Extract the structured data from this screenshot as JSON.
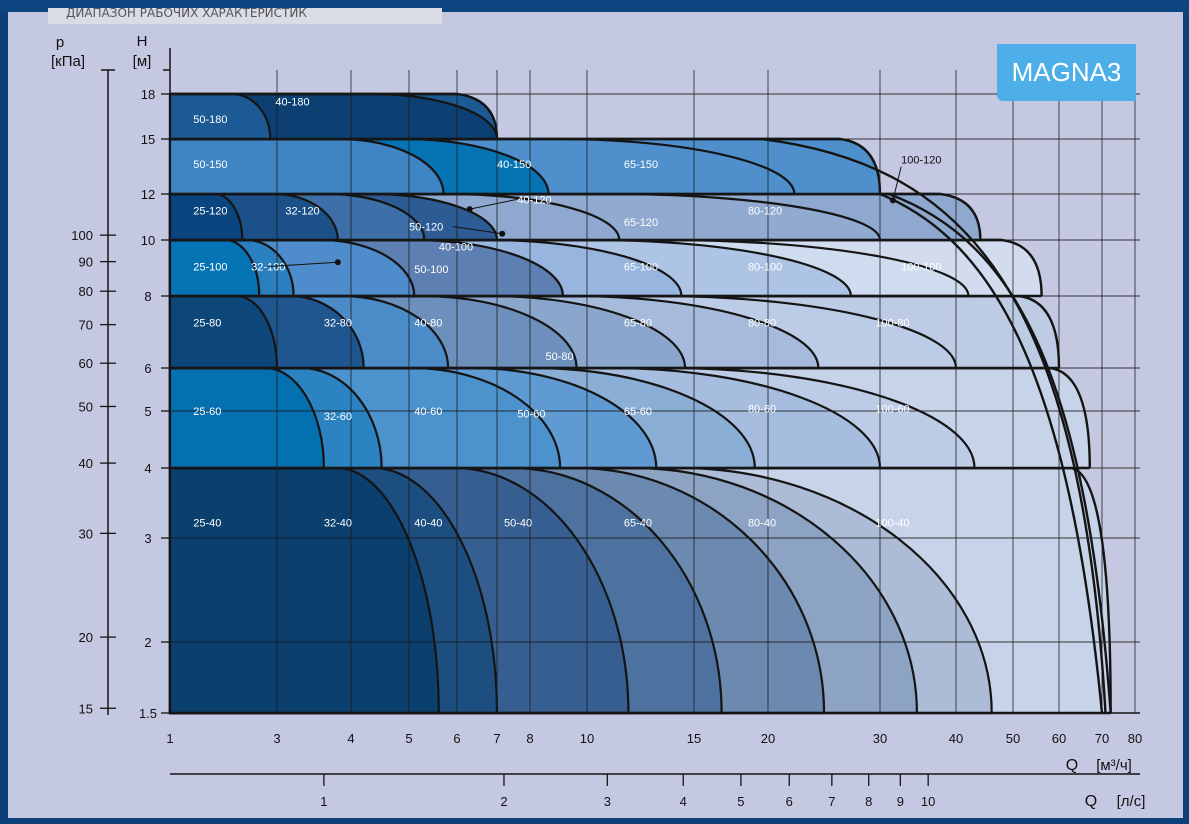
{
  "header": {
    "text": "ДИАПАЗОН РАБОЧИХ ХАРАКТЕРИСТИК"
  },
  "badge": {
    "label": "MAGNA3"
  },
  "colors": {
    "panel": "#c4c9e1",
    "band": "#0d3f78",
    "badge": "#4daee8",
    "grid": "#1a1a1a",
    "curve": "#141414"
  },
  "chart_data": {
    "type": "area",
    "title": "",
    "y_scale": "log",
    "x_scale": "log",
    "grid": true,
    "axes": {
      "H": {
        "label": "H",
        "unit": "[м]",
        "range": [
          1.5,
          20
        ],
        "ticks": [
          "1.5",
          "2",
          "3",
          "4",
          "5",
          "6",
          "8",
          "10",
          "12",
          "15",
          "18"
        ]
      },
      "p": {
        "label": "p",
        "unit": "[кПа]",
        "range": [
          15,
          200
        ],
        "ticks": [
          "15",
          "20",
          "30",
          "40",
          "50",
          "60",
          "70",
          "80",
          "90",
          "100"
        ]
      },
      "Q_m3h": {
        "label": "Q",
        "unit": "[м³/ч]",
        "range": [
          1,
          80
        ],
        "ticks": [
          "1",
          "3",
          "4",
          "5",
          "6",
          "7",
          "8",
          "10",
          "15",
          "20",
          "30",
          "40",
          "50",
          "60",
          "70",
          "80"
        ]
      },
      "Q_ls": {
        "label": "Q",
        "unit": "[л/с]",
        "ticks": [
          "1",
          "2",
          "3",
          "4",
          "5",
          "6",
          "7",
          "8",
          "9",
          "10"
        ]
      }
    },
    "bands": [
      {
        "hmin": 1.5,
        "hmax": 4,
        "color": "#c7d3e8",
        "qright": 72.5,
        "segments": [
          {
            "label": "25-40",
            "qend": 5.6,
            "color": "#0a3f6e"
          },
          {
            "label": "32-40",
            "qend": 7.0,
            "color": "#1c4f80"
          },
          {
            "label": "40-40",
            "qend": 11.7,
            "color": "#365e91"
          },
          {
            "label": "50-40",
            "qend": 16.7,
            "color": "#4e72a0"
          },
          {
            "label": "65-40",
            "qend": 24.5,
            "color": "#6c89b0"
          },
          {
            "label": "80-40",
            "qend": 34.5,
            "color": "#8da3c4"
          },
          {
            "label": "100-40",
            "qend": 46,
            "color": "#adbcd6"
          }
        ]
      },
      {
        "hmin": 4,
        "hmax": 6,
        "color": "#c7d3e8",
        "qright": 67,
        "segments": [
          {
            "label": "25-60",
            "qend": 3.6,
            "color": "#0570b0"
          },
          {
            "label": "32-60",
            "qend": 4.5,
            "color": "#2c83c2"
          },
          {
            "label": "40-60",
            "qend": 9.0,
            "color": "#4c92cc"
          },
          {
            "label": "50-60",
            "qend": 13.0,
            "color": "#5f9bd2"
          },
          {
            "label": "65-60",
            "qend": 19.0,
            "color": "#8aaed6"
          },
          {
            "label": "80-60",
            "qend": 30,
            "color": "#a6bde0"
          },
          {
            "label": "100-60",
            "qend": 43,
            "color": "#bccbe6"
          }
        ]
      },
      {
        "hmin": 6,
        "hmax": 8,
        "color": "#bdcbe4",
        "qright": 60,
        "segments": [
          {
            "label": "25-80",
            "qend": 3.0,
            "color": "#0d477a"
          },
          {
            "label": "32-80",
            "qend": 4.2,
            "color": "#1f5690"
          },
          {
            "label": "40-80",
            "qend": 5.8,
            "color": "#4a8bc8"
          },
          {
            "label": "50-80",
            "qend": 9.6,
            "color": "#6c8fbb"
          },
          {
            "label": "65-80",
            "qend": 14.5,
            "color": "#8aa6cc"
          },
          {
            "label": "80-80",
            "qend": 24,
            "color": "#a6bbdc"
          },
          {
            "label": "100-80",
            "qend": 40,
            "color": "#bccbe6"
          }
        ]
      },
      {
        "hmin": 8,
        "hmax": 10,
        "color": "#d2dcee",
        "qright": 56,
        "segments": [
          {
            "label": "25-100",
            "qend": 2.5,
            "color": "#0574b4"
          },
          {
            "label": "32-100",
            "qend": 3.2,
            "color": "#2a7fbf"
          },
          {
            "label": "50-100",
            "qend": 5.1,
            "color": "#4e8ccb"
          },
          {
            "label": "40-100",
            "qend": 9.1,
            "color": "#5e7fb2"
          },
          {
            "label": "65-100",
            "qend": 14.3,
            "color": "#97b5de"
          },
          {
            "label": "80-100",
            "qend": 27,
            "color": "#aec4e4"
          },
          {
            "label": "100-100",
            "qend": 42,
            "color": "#cfdcef"
          }
        ]
      },
      {
        "hmin": 10,
        "hmax": 12,
        "color": "#8ea8cf",
        "qright": 44,
        "segments": [
          {
            "label": "25-120",
            "qend": 2.1,
            "color": "#0a4580"
          },
          {
            "label": "32-120",
            "qend": 3.8,
            "color": "#1c5089"
          },
          {
            "label": "50-120",
            "qend": 5.3,
            "color": "#3e6fa8"
          },
          {
            "label": "40-120",
            "qend": 7.0,
            "color": "#2d5b94"
          },
          {
            "label": "65-120",
            "qend": 11.3,
            "color": "#8ea8cf"
          },
          {
            "label": "80-120",
            "qend": 30,
            "color": "#90aad0"
          }
        ]
      },
      {
        "hmin": 12,
        "hmax": 15,
        "color": "#4f8fcb",
        "qright": 30,
        "segments": [
          {
            "label": "50-150",
            "qend": 5.7,
            "color": "#3f84c3"
          },
          {
            "label": "40-150",
            "qend": 8.6,
            "color": "#0673b3"
          },
          {
            "label": "65-150",
            "qend": 22,
            "color": "#4f8fcb"
          }
        ]
      },
      {
        "hmin": 15,
        "hmax": 18,
        "color": "#1c5a96",
        "qright": 7.0,
        "segments": [
          {
            "label": "50-180",
            "qend": 2.8,
            "color": "#1c5a96"
          },
          {
            "label": "40-180",
            "qend": 7.0,
            "color": "#0c3f72"
          }
        ]
      }
    ],
    "series_labels": [
      {
        "label": "25-40",
        "q": 1.27,
        "h": 3.2
      },
      {
        "label": "32-40",
        "q": 3.6,
        "h": 3.2
      },
      {
        "label": "40-40",
        "q": 5.1,
        "h": 3.2
      },
      {
        "label": "50-40",
        "q": 7.2,
        "h": 3.2
      },
      {
        "label": "65-40",
        "q": 11.5,
        "h": 3.2
      },
      {
        "label": "80-40",
        "q": 18.5,
        "h": 3.2
      },
      {
        "label": "100-40",
        "q": 29.5,
        "h": 3.2
      },
      {
        "label": "25-60",
        "q": 1.27,
        "h": 5.0
      },
      {
        "label": "32-60",
        "q": 3.6,
        "h": 4.9
      },
      {
        "label": "40-60",
        "q": 5.1,
        "h": 5.0
      },
      {
        "label": "50-60",
        "q": 7.6,
        "h": 4.95
      },
      {
        "label": "65-60",
        "q": 11.5,
        "h": 5.0
      },
      {
        "label": "80-60",
        "q": 18.5,
        "h": 5.05
      },
      {
        "label": "100-60",
        "q": 29.5,
        "h": 5.05
      },
      {
        "label": "25-80",
        "q": 1.27,
        "h": 7.2
      },
      {
        "label": "32-80",
        "q": 3.6,
        "h": 7.2
      },
      {
        "label": "40-80",
        "q": 5.1,
        "h": 7.2
      },
      {
        "label": "50-80",
        "q": 8.5,
        "h": 6.3
      },
      {
        "label": "65-80",
        "q": 11.5,
        "h": 7.2
      },
      {
        "label": "80-80",
        "q": 18.5,
        "h": 7.2
      },
      {
        "label": "100-80",
        "q": 29.5,
        "h": 7.2
      },
      {
        "label": "25-100",
        "q": 1.27,
        "h": 9.0
      },
      {
        "label": "32-100",
        "q": 2.3,
        "h": 9.0
      },
      {
        "label": "50-100",
        "q": 5.1,
        "h": 8.9
      },
      {
        "label": "40-100",
        "q": 5.6,
        "h": 9.75
      },
      {
        "label": "65-100",
        "q": 11.5,
        "h": 9.0
      },
      {
        "label": "80-100",
        "q": 18.5,
        "h": 9.0
      },
      {
        "label": "100-100",
        "q": 32.5,
        "h": 9.0
      },
      {
        "label": "25-120",
        "q": 1.27,
        "h": 11.25
      },
      {
        "label": "32-120",
        "q": 3.1,
        "h": 11.25
      },
      {
        "label": "50-120",
        "q": 5.0,
        "h": 10.55
      },
      {
        "label": "40-120",
        "q": 7.6,
        "h": 11.75
      },
      {
        "label": "65-120",
        "q": 11.5,
        "h": 10.75
      },
      {
        "label": "80-120",
        "q": 18.5,
        "h": 11.25
      },
      {
        "label": "100-120",
        "q": 32.5,
        "h": 13.8
      },
      {
        "label": "50-150",
        "q": 1.27,
        "h": 13.55
      },
      {
        "label": "40-150",
        "q": 7.0,
        "h": 13.55
      },
      {
        "label": "65-150",
        "q": 11.5,
        "h": 13.55
      },
      {
        "label": "50-180",
        "q": 1.27,
        "h": 16.25
      },
      {
        "label": "40-180",
        "q": 2.95,
        "h": 17.45
      }
    ],
    "pointers": [
      {
        "label": "40-120",
        "q": 6.3,
        "h": 11.3
      },
      {
        "label": "50-120",
        "q": 7.15,
        "h": 10.25
      },
      {
        "label": "32-100",
        "q": 3.8,
        "h": 9.15
      },
      {
        "label": "100-120",
        "q": 31.5,
        "h": 11.7
      }
    ]
  }
}
